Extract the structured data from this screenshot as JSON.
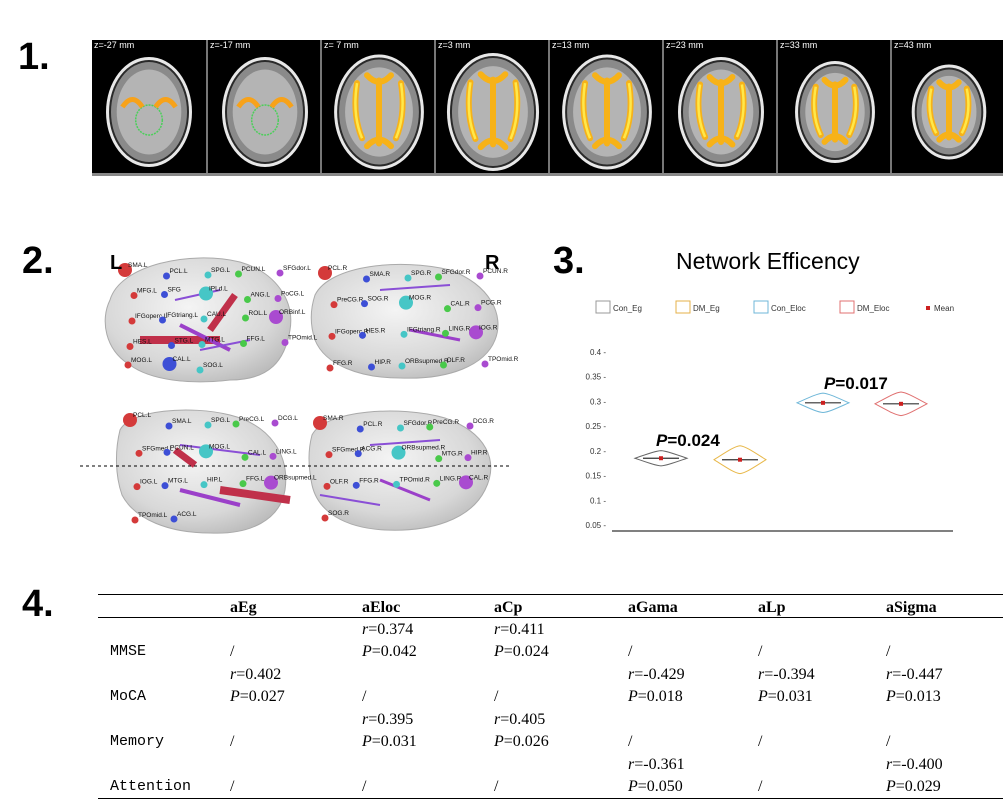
{
  "panels": {
    "p1": "1.",
    "p2": "2.",
    "p3": "3.",
    "p4": "4."
  },
  "slices": [
    "z=-27 mm",
    "z=-17 mm",
    "z= 7 mm",
    "z=3 mm",
    "z=13 mm",
    "z=23 mm",
    "z=33 mm",
    "z=43 mm"
  ],
  "brain_panel": {
    "left_label": "L",
    "right_label": "R",
    "nodes_top_left": [
      "SMA.L",
      "PCL.L",
      "SPG.L",
      "PCUN.L",
      "SFGdor.L",
      "MFG.L",
      "SFG",
      "IPLd.L",
      "ANG.L",
      "PoCG.L",
      "IFGoperc.L",
      "IFGtriang.L",
      "CAU.L",
      "ROL.L",
      "ORBinf.L",
      "HES.L",
      "STG.L",
      "MTG.L",
      "FFG.L",
      "TPOmid.L",
      "MOG.L",
      "CAL.L",
      "SOG.L"
    ],
    "nodes_top_right": [
      "PCL.R",
      "SMA.R",
      "SPG.R",
      "SFGdor.R",
      "PCUN.R",
      "PreCG.R",
      "SOG.R",
      "MOG.R",
      "CAL.R",
      "PCG.R",
      "IFGoperc.R",
      "HES.R",
      "IFGtriang.R",
      "LING.R",
      "IOG.R",
      "FFG.R",
      "HIP.R",
      "ORBsupmed.R",
      "OLF.R",
      "TPOmid.R"
    ],
    "nodes_bottom_left": [
      "PCL.L",
      "SMA.L",
      "SPG.L",
      "PreCG.L",
      "DCG.L",
      "SFGmed.L",
      "PCUN.L",
      "MOG.L",
      "CAL.L",
      "LING.L",
      "IOG.L",
      "MTG.L",
      "HIP.L",
      "FFG.L",
      "ORBsupmed.L",
      "TPOmid.L",
      "ACG.L"
    ],
    "nodes_bottom_right": [
      "SMA.R",
      "PCL.R",
      "SFGdor.R",
      "PreCG.R",
      "DCG.R",
      "SFGmed.R",
      "ACG.R",
      "ORBsupmed.R",
      "MTG.R",
      "HIP.R",
      "OLF.R",
      "FFG.R",
      "TPOmid.R",
      "LING.R",
      "CAL.R",
      "SOG.R"
    ]
  },
  "chart_data": {
    "type": "violin",
    "title": "Network Efficency",
    "legend": [
      "Con_Eg",
      "DM_Eg",
      "Con_Eloc",
      "DM_Eloc",
      "Mean"
    ],
    "yticks": [
      "0.4 -",
      "0.35 -",
      "0.3 -",
      "0.25 -",
      "0.2 -",
      "0.15 -",
      "0.1 -",
      "0.05 -"
    ],
    "ytick_values": [
      0.4,
      0.35,
      0.3,
      0.25,
      0.2,
      0.15,
      0.1,
      0.05
    ],
    "ylim": [
      0.05,
      0.42
    ],
    "groups": [
      {
        "name": "Con_Eg",
        "mean": 0.185,
        "min": 0.18,
        "max": 0.19,
        "color": "#666666"
      },
      {
        "name": "DM_Eg",
        "mean": 0.182,
        "min": 0.17,
        "max": 0.195,
        "color": "#e8b84a"
      },
      {
        "name": "Con_Eloc",
        "mean": 0.297,
        "min": 0.29,
        "max": 0.305,
        "color": "#6fb7d8"
      },
      {
        "name": "DM_Eloc",
        "mean": 0.295,
        "min": 0.285,
        "max": 0.305,
        "color": "#e07070"
      }
    ],
    "annotations": [
      {
        "label": "P",
        "value": "=0.024",
        "between": [
          "Con_Eg",
          "DM_Eg"
        ]
      },
      {
        "label": "P",
        "value": "=0.017",
        "between": [
          "Con_Eloc",
          "DM_Eloc"
        ]
      }
    ]
  },
  "table": {
    "headers": [
      "",
      "aEg",
      "aEloc",
      "aCp",
      "aGama",
      "aLp",
      "aSigma"
    ],
    "rows": [
      {
        "label": "MMSE",
        "cells": [
          [
            "",
            "/"
          ],
          [
            "r=0.374",
            "P=0.042"
          ],
          [
            "r=0.411",
            "P=0.024"
          ],
          [
            "",
            "/"
          ],
          [
            "",
            "/"
          ],
          [
            "",
            "/"
          ]
        ]
      },
      {
        "label": "MoCA",
        "cells": [
          [
            "r=0.402",
            "P=0.027"
          ],
          [
            "",
            "/"
          ],
          [
            "",
            "/"
          ],
          [
            "r=-0.429",
            "P=0.018"
          ],
          [
            "r=-0.394",
            "P=0.031"
          ],
          [
            "r=-0.447",
            "P=0.013"
          ]
        ]
      },
      {
        "label": "Memory",
        "cells": [
          [
            "",
            "/"
          ],
          [
            "r=0.395",
            "P=0.031"
          ],
          [
            "r=0.405",
            "P=0.026"
          ],
          [
            "",
            "/"
          ],
          [
            "",
            "/"
          ],
          [
            "",
            "/"
          ]
        ]
      },
      {
        "label": "Attention",
        "cells": [
          [
            "",
            "/"
          ],
          [
            "",
            "/"
          ],
          [
            "",
            "/"
          ],
          [
            "r=-0.361",
            "P=0.050"
          ],
          [
            "",
            "/"
          ],
          [
            "r=-0.400",
            "P=0.029"
          ]
        ]
      }
    ]
  }
}
